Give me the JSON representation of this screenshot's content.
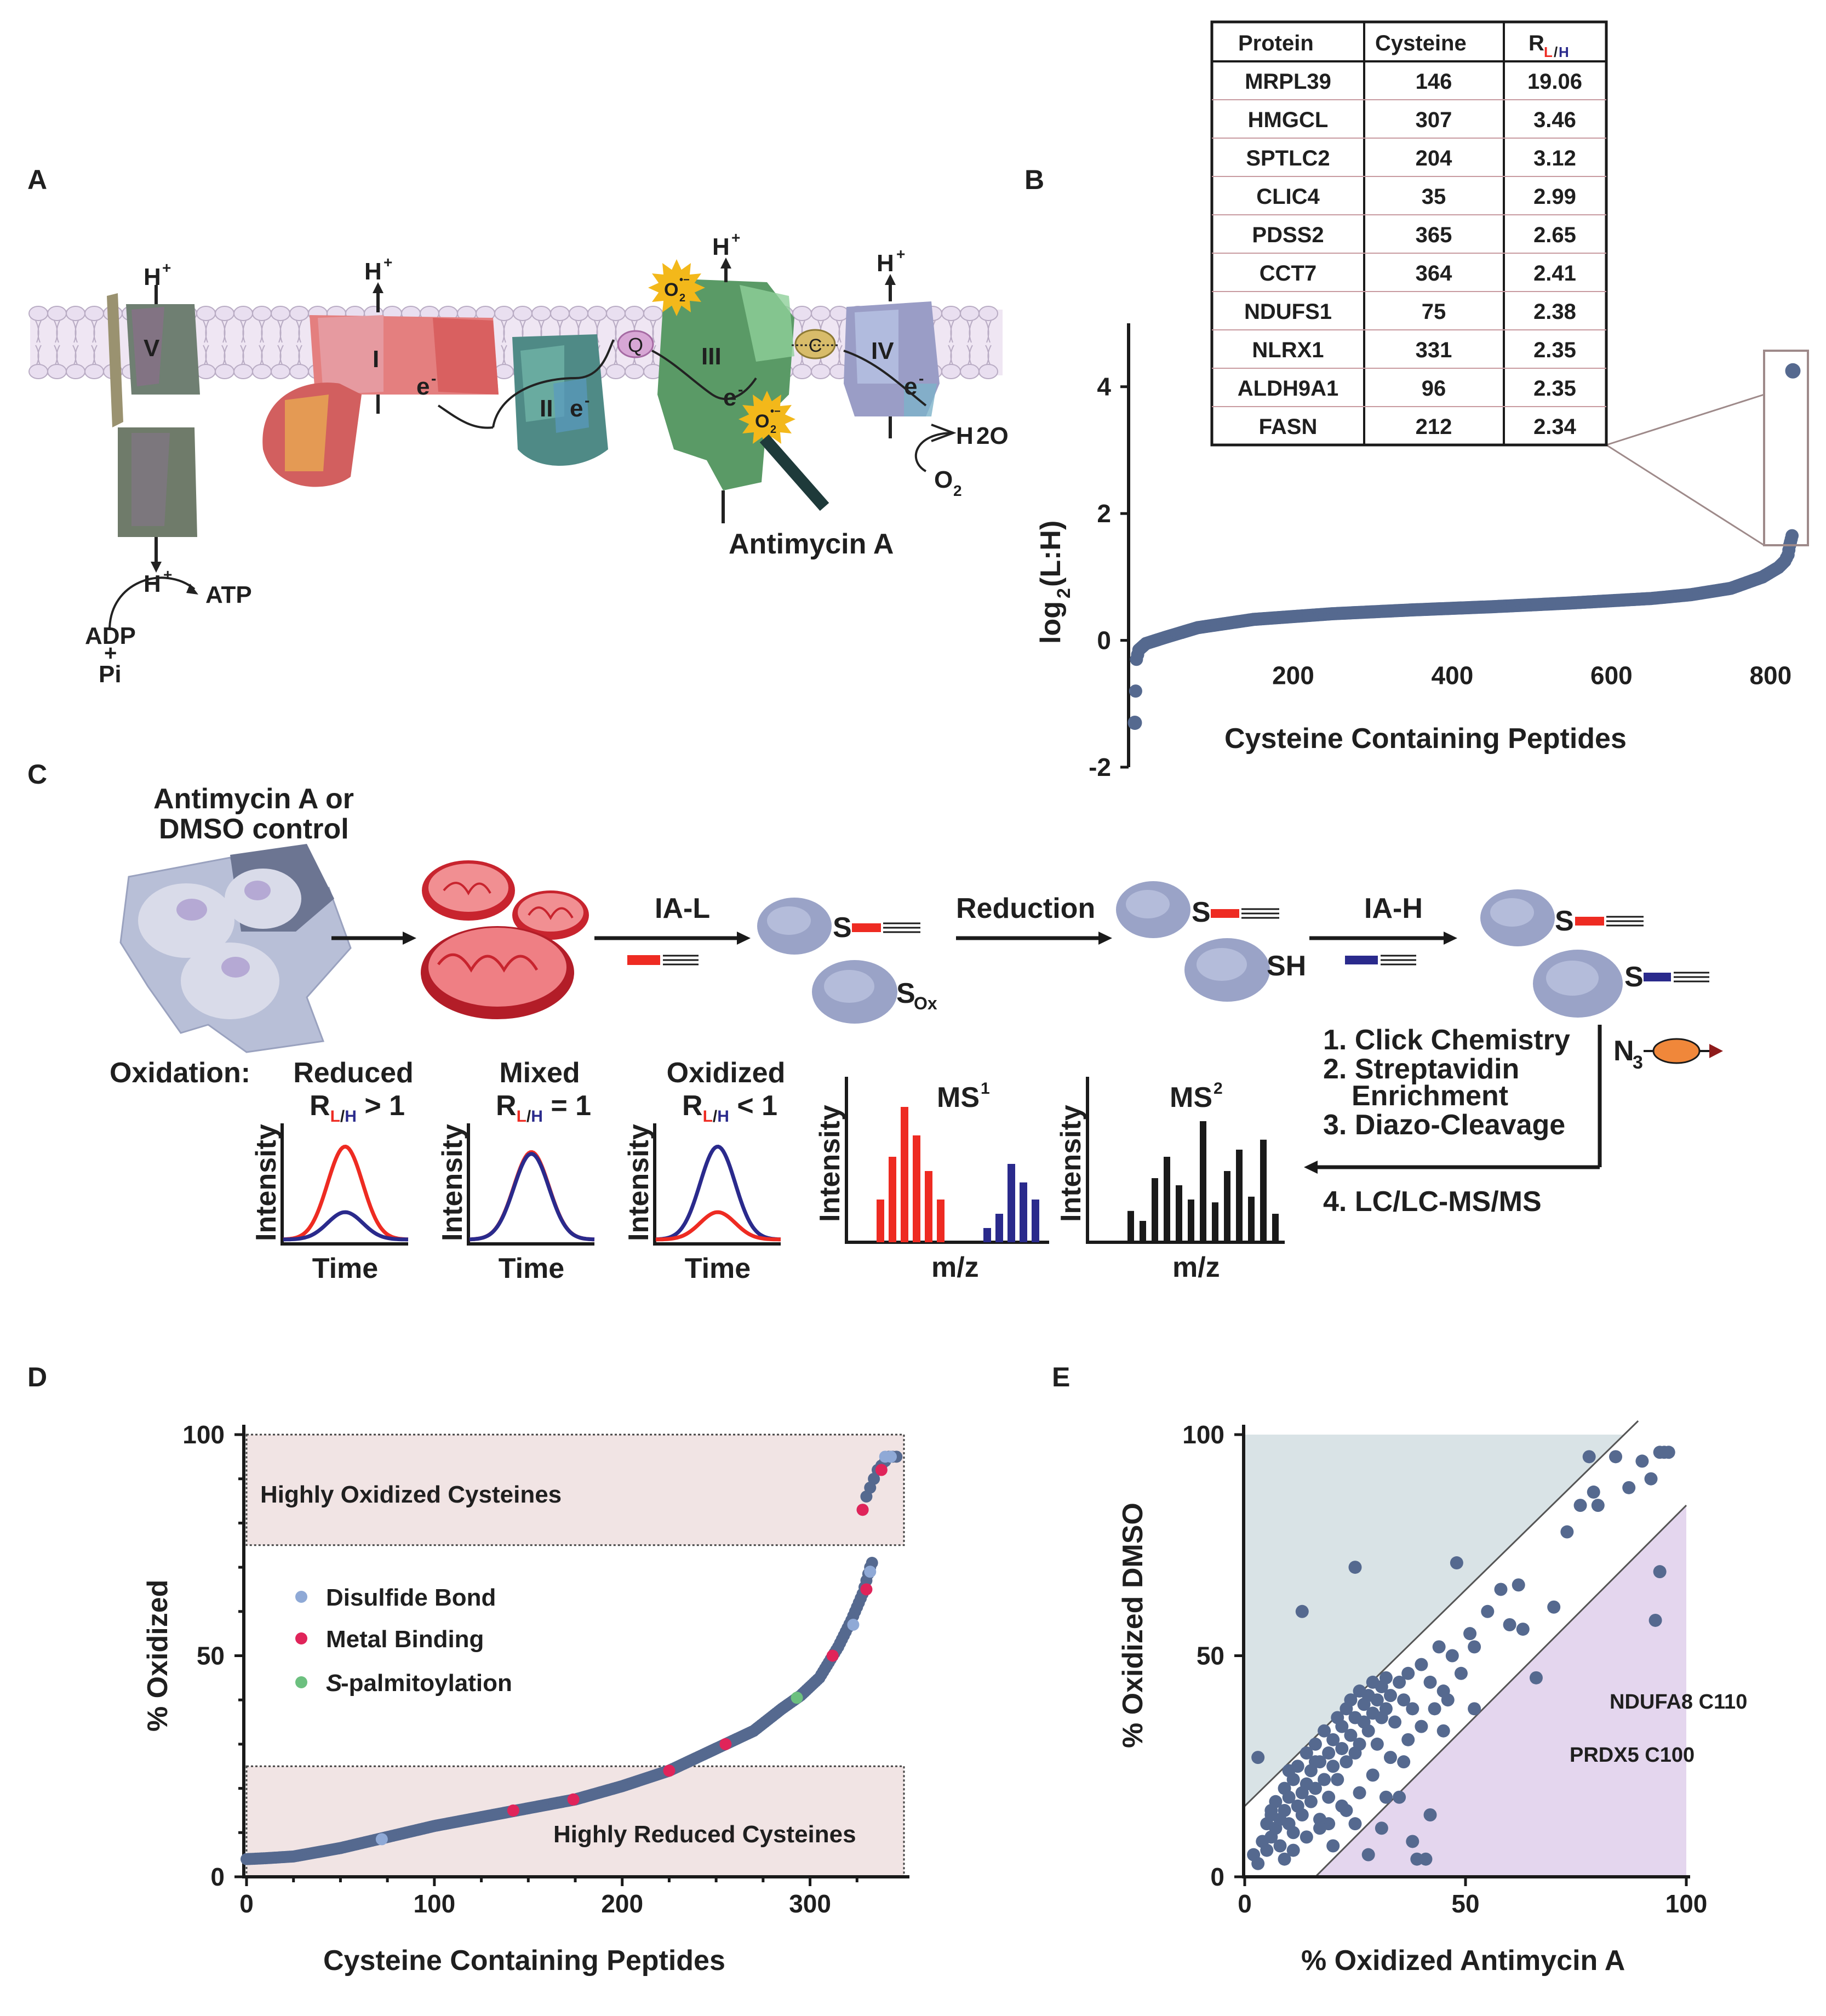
{
  "panels": {
    "a": "A",
    "b": "B",
    "c": "C",
    "d": "D",
    "e": "E"
  },
  "panel_a": {
    "complexes": [
      "V",
      "I",
      "II",
      "III",
      "IV"
    ],
    "carriers": {
      "q": "Q",
      "c": "C"
    },
    "proton": "H",
    "electron": "e",
    "superoxide": "O",
    "water": "H",
    "water_sub": "2O",
    "oxygen": "O",
    "oxygen_sub": "2",
    "atp": "ATP",
    "adp": "ADP",
    "plus": "+",
    "pi": "Pi",
    "inhibitor": "Antimycin A"
  },
  "panel_b_table": {
    "headers": [
      "Protein",
      "Cysteine",
      "R"
    ],
    "r_sub_l": "L",
    "r_sub_slash": "/",
    "r_sub_h": "H",
    "rows": [
      [
        "MRPL39",
        "146",
        "19.06"
      ],
      [
        "HMGCL",
        "307",
        "3.46"
      ],
      [
        "SPTLC2",
        "204",
        "3.12"
      ],
      [
        "CLIC4",
        "35",
        "2.99"
      ],
      [
        "PDSS2",
        "365",
        "2.65"
      ],
      [
        "CCT7",
        "364",
        "2.41"
      ],
      [
        "NDUFS1",
        "75",
        "2.38"
      ],
      [
        "NLRX1",
        "331",
        "2.35"
      ],
      [
        "ALDH9A1",
        "96",
        "2.35"
      ],
      [
        "FASN",
        "212",
        "2.34"
      ]
    ]
  },
  "panel_c": {
    "treatment_line1": "Antimycin A or",
    "treatment_line2": "DMSO control",
    "step_ia_l": "IA-L",
    "step_reduction": "Reduction",
    "step_ia_h": "IA-H",
    "s_label": "S",
    "sox_label": "S",
    "sox_sub": "Ox",
    "sh_label": "SH",
    "n3_label": "N",
    "n3_sub": "3",
    "workflow": [
      "1. Click Chemistry",
      "2. Streptavidin",
      "Enrichment",
      "3. Diazo-Cleavage",
      "4. LC/LC-MS/MS"
    ],
    "oxidation_label": "Oxidation:",
    "states": [
      {
        "name": "Reduced",
        "rel": " > 1"
      },
      {
        "name": "Mixed",
        "rel": " = 1"
      },
      {
        "name": "Oxidized",
        "rel": " < 1"
      }
    ],
    "r_letter": "R",
    "r_l": "L",
    "r_slash": "/",
    "r_h": "H",
    "intensity": "Intensity",
    "time": "Time",
    "ms1": "MS",
    "ms1_sup": "1",
    "ms2": "MS",
    "ms2_sup": "2",
    "mz": "m/z"
  },
  "panel_d_text": {
    "region_high": "Highly Oxidized Cysteines",
    "region_low": "Highly Reduced Cysteines",
    "legend": [
      "Disulfide Bond",
      "Metal Binding",
      "S-palmitoylation"
    ],
    "legend_italic_prefix": "S",
    "legend_rest": "-palmitoylation"
  },
  "panel_e_text": {
    "annotations": [
      "NDUFA8 C110",
      "PRDX5 C100"
    ]
  },
  "colors": {
    "point": "#55698f",
    "disulfide": "#8fa9d6",
    "metal": "#e0245a",
    "palm": "#6cc07f",
    "light": "#ee2b22",
    "heavy": "#2a2a8c",
    "shade_upper": "#d9e3e6",
    "shade_lower": "#e4d6ee",
    "shade_d": "#f1e4e4"
  },
  "chart_data": [
    {
      "type": "scatter",
      "panel": "B",
      "title": "",
      "xlabel": "Cysteine Containing Peptides",
      "ylabel": "log2(L:H)",
      "ylabel_main": "log",
      "ylabel_sub": "2",
      "ylabel_rest": "(L:H)",
      "xlim": [
        0,
        830
      ],
      "ylim": [
        -2,
        5
      ],
      "xticks": [
        200,
        400,
        600,
        800
      ],
      "yticks": [
        -2,
        0,
        2,
        4
      ],
      "curve": [
        [
          1,
          -1.3
        ],
        [
          3,
          -0.3
        ],
        [
          6,
          -0.15
        ],
        [
          15,
          -0.05
        ],
        [
          40,
          0.05
        ],
        [
          80,
          0.2
        ],
        [
          150,
          0.33
        ],
        [
          250,
          0.42
        ],
        [
          350,
          0.48
        ],
        [
          450,
          0.53
        ],
        [
          550,
          0.59
        ],
        [
          650,
          0.66
        ],
        [
          700,
          0.72
        ],
        [
          750,
          0.82
        ],
        [
          790,
          1.0
        ],
        [
          810,
          1.15
        ],
        [
          818,
          1.25
        ],
        [
          822,
          1.35
        ],
        [
          824,
          1.5
        ],
        [
          826,
          1.6
        ],
        [
          828,
          1.7
        ]
      ],
      "highlight": [
        [
          828,
          4.25
        ]
      ]
    },
    {
      "type": "scatter",
      "panel": "D",
      "xlabel": "Cysteine Containing Peptides",
      "ylabel": "% Oxidized",
      "xlim": [
        0,
        350
      ],
      "ylim": [
        0,
        100
      ],
      "xticks": [
        0,
        100,
        200,
        300
      ],
      "yticks": [
        0,
        50,
        100
      ],
      "curve": [
        [
          0,
          4
        ],
        [
          10,
          4.2
        ],
        [
          25,
          4.6
        ],
        [
          50,
          6.5
        ],
        [
          75,
          9
        ],
        [
          100,
          11.5
        ],
        [
          125,
          13.5
        ],
        [
          150,
          15.5
        ],
        [
          175,
          17.5
        ],
        [
          200,
          20.5
        ],
        [
          225,
          24
        ],
        [
          250,
          29
        ],
        [
          270,
          33
        ],
        [
          285,
          38
        ],
        [
          295,
          41
        ],
        [
          305,
          45
        ],
        [
          315,
          52
        ],
        [
          322,
          58
        ],
        [
          328,
          64
        ],
        [
          332,
          70
        ],
        [
          334,
          72
        ]
      ],
      "cluster": [
        [
          328,
          83
        ],
        [
          330,
          86
        ],
        [
          332,
          88
        ],
        [
          334,
          90
        ],
        [
          336,
          92
        ],
        [
          338,
          93
        ],
        [
          340,
          94
        ],
        [
          342,
          95
        ],
        [
          344,
          95
        ],
        [
          346,
          95
        ]
      ],
      "disulfide": [
        [
          72,
          8.5
        ],
        [
          323,
          57
        ],
        [
          332,
          69
        ],
        [
          340,
          95
        ],
        [
          343,
          95
        ]
      ],
      "metal": [
        [
          142,
          15
        ],
        [
          174,
          17.5
        ],
        [
          225,
          24
        ],
        [
          255,
          30
        ],
        [
          312,
          50
        ],
        [
          330,
          65
        ],
        [
          338,
          92
        ],
        [
          328,
          83
        ]
      ],
      "palmitoylation": [
        [
          293,
          40.5
        ]
      ],
      "high_band": [
        75,
        100
      ],
      "low_band": [
        0,
        25
      ]
    },
    {
      "type": "scatter",
      "panel": "E",
      "xlabel": "% Oxidized Antimycin A",
      "ylabel": "% Oxidized DMSO",
      "xlim": [
        0,
        100
      ],
      "ylim": [
        0,
        100
      ],
      "xticks": [
        0,
        50,
        100
      ],
      "yticks": [
        0,
        50,
        100
      ],
      "upper_line": [
        [
          0,
          16
        ],
        [
          86,
          100
        ]
      ],
      "lower_line": [
        [
          16,
          0
        ],
        [
          100,
          84
        ]
      ],
      "labeled_points": [
        {
          "label": "NDUFA8 C110",
          "x": 94,
          "y": 69
        },
        {
          "label": "PRDX5 C100",
          "x": 93,
          "y": 58
        }
      ],
      "points": [
        [
          2,
          5
        ],
        [
          3,
          3
        ],
        [
          4,
          8
        ],
        [
          5,
          6
        ],
        [
          5,
          12
        ],
        [
          6,
          9
        ],
        [
          6,
          14
        ],
        [
          7,
          11
        ],
        [
          7,
          17
        ],
        [
          8,
          7
        ],
        [
          8,
          13
        ],
        [
          9,
          15
        ],
        [
          9,
          20
        ],
        [
          10,
          12
        ],
        [
          10,
          18
        ],
        [
          11,
          22
        ],
        [
          11,
          10
        ],
        [
          12,
          16
        ],
        [
          12,
          25
        ],
        [
          13,
          19
        ],
        [
          13,
          14
        ],
        [
          14,
          21
        ],
        [
          14,
          28
        ],
        [
          15,
          17
        ],
        [
          15,
          24
        ],
        [
          16,
          30
        ],
        [
          16,
          20
        ],
        [
          17,
          26
        ],
        [
          17,
          13
        ],
        [
          18,
          22
        ],
        [
          18,
          33
        ],
        [
          19,
          28
        ],
        [
          19,
          18
        ],
        [
          20,
          31
        ],
        [
          20,
          25
        ],
        [
          21,
          36
        ],
        [
          21,
          22
        ],
        [
          22,
          29
        ],
        [
          22,
          34
        ],
        [
          23,
          38
        ],
        [
          23,
          26
        ],
        [
          24,
          32
        ],
        [
          24,
          40
        ],
        [
          25,
          28
        ],
        [
          25,
          36
        ],
        [
          26,
          42
        ],
        [
          26,
          30
        ],
        [
          27,
          35
        ],
        [
          27,
          39
        ],
        [
          28,
          33
        ],
        [
          28,
          41
        ],
        [
          29,
          37
        ],
        [
          29,
          44
        ],
        [
          30,
          30
        ],
        [
          30,
          40
        ],
        [
          31,
          43
        ],
        [
          31,
          36
        ],
        [
          32,
          38
        ],
        [
          32,
          45
        ],
        [
          33,
          41
        ],
        [
          34,
          35
        ],
        [
          35,
          44
        ],
        [
          36,
          40
        ],
        [
          37,
          46
        ],
        [
          38,
          38
        ],
        [
          40,
          48
        ],
        [
          42,
          44
        ],
        [
          44,
          52
        ],
        [
          45,
          42
        ],
        [
          47,
          50
        ],
        [
          48,
          71
        ],
        [
          49,
          46
        ],
        [
          51,
          55
        ],
        [
          52,
          52
        ],
        [
          52,
          38
        ],
        [
          55,
          60
        ],
        [
          58,
          65
        ],
        [
          60,
          57
        ],
        [
          62,
          66
        ],
        [
          63,
          56
        ],
        [
          66,
          45
        ],
        [
          70,
          61
        ],
        [
          73,
          78
        ],
        [
          76,
          84
        ],
        [
          78,
          95
        ],
        [
          79,
          87
        ],
        [
          80,
          84
        ],
        [
          84,
          95
        ],
        [
          87,
          88
        ],
        [
          90,
          94
        ],
        [
          92,
          90
        ],
        [
          94,
          96
        ],
        [
          95,
          96
        ],
        [
          96,
          96
        ],
        [
          13,
          60
        ],
        [
          25,
          70
        ],
        [
          3,
          27
        ],
        [
          9,
          4
        ],
        [
          20,
          7
        ],
        [
          25,
          12
        ],
        [
          32,
          18
        ],
        [
          36,
          26
        ],
        [
          38,
          8
        ],
        [
          42,
          14
        ],
        [
          45,
          33
        ],
        [
          39,
          4
        ],
        [
          41,
          4
        ],
        [
          28,
          5
        ],
        [
          31,
          11
        ],
        [
          35,
          18
        ],
        [
          6,
          15
        ],
        [
          10,
          24
        ],
        [
          16,
          26
        ],
        [
          19,
          12
        ],
        [
          22,
          16
        ],
        [
          11,
          6
        ],
        [
          14,
          9
        ],
        [
          17,
          11
        ],
        [
          23,
          15
        ],
        [
          26,
          19
        ],
        [
          29,
          23
        ],
        [
          33,
          27
        ],
        [
          37,
          31
        ],
        [
          40,
          34
        ],
        [
          43,
          38
        ],
        [
          46,
          40
        ]
      ]
    }
  ]
}
